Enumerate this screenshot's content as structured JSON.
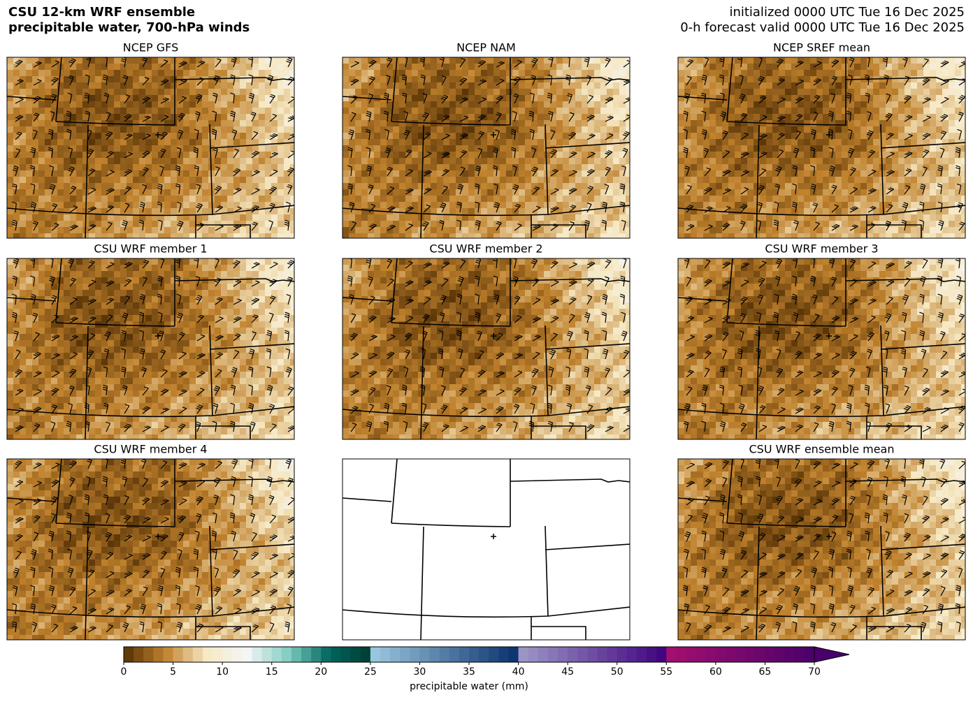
{
  "header": {
    "title": [
      "CSU 12-km WRF ensemble",
      "precipitable water, 700-hPa winds"
    ],
    "info": [
      "initialized 0000 UTC Tue 16 Dec 2025",
      "0-h forecast valid 0000 UTC Tue 16 Dec 2025"
    ]
  },
  "panels": [
    "NCEP GFS",
    "NCEP NAM",
    "NCEP SREF mean",
    "CSU WRF member 1",
    "CSU WRF member 2",
    "CSU WRF member 3",
    "CSU WRF member 4",
    "CSU WRF ensemble mean"
  ],
  "colorbar": {
    "label": "precipitable water (mm)",
    "lim": [
      0,
      70
    ],
    "ticks": [
      0,
      5,
      10,
      15,
      20,
      25,
      30,
      35,
      40,
      45,
      50,
      55,
      60,
      65,
      70
    ],
    "segments": [
      {
        "range": [
          0,
          25
        ],
        "colors": [
          "#543005",
          "#bf812d",
          "#f6e8c3",
          "#f5f5f5",
          "#80cdc1",
          "#01665e",
          "#003c30"
        ]
      },
      {
        "range": [
          25,
          40
        ],
        "colors": [
          "#9ecae1",
          "#08306b"
        ]
      },
      {
        "range": [
          40,
          55
        ],
        "colors": [
          "#9e9ac8",
          "#3f007d"
        ]
      },
      {
        "range": [
          55,
          70
        ],
        "colors": [
          "#a50f6e",
          "#49006a"
        ]
      }
    ]
  }
}
